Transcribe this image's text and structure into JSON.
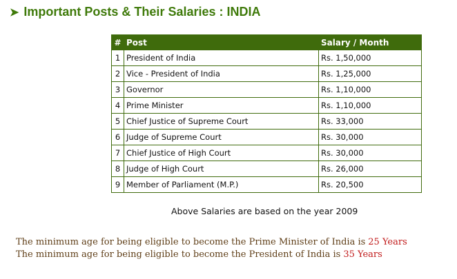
{
  "heading": {
    "arrow": "➤",
    "text": "Important Posts & Their Salaries : INDIA"
  },
  "table": {
    "headers": {
      "num": "#",
      "post": "Post",
      "salary": "Salary / Month"
    },
    "rows": [
      {
        "num": "1",
        "post": "President of India",
        "salary": "Rs. 1,50,000"
      },
      {
        "num": "2",
        "post": "Vice - President of India",
        "salary": "Rs. 1,25,000"
      },
      {
        "num": "3",
        "post": "Governor",
        "salary": "Rs. 1,10,000"
      },
      {
        "num": "4",
        "post": "Prime Minister",
        "salary": "Rs. 1,10,000"
      },
      {
        "num": "5",
        "post": "Chief Justice of Supreme Court",
        "salary": "Rs. 33,000"
      },
      {
        "num": "6",
        "post": "Judge of Supreme Court",
        "salary": "Rs. 30,000"
      },
      {
        "num": "7",
        "post": "Chief Justice of High Court",
        "salary": "Rs. 30,000"
      },
      {
        "num": "8",
        "post": "Judge of High Court",
        "salary": "Rs. 26,000"
      },
      {
        "num": "9",
        "post": "Member of Parliament (M.P.)",
        "salary": "Rs. 20,500"
      }
    ]
  },
  "note": "Above Salaries are based on the year 2009",
  "age_notes": [
    {
      "text": "The minimum age for being eligible to become the Prime Minister of India is",
      "value": "25 Years"
    },
    {
      "text": "The minimum age for being eligible to become the President of India is",
      "value": "35 Years"
    }
  ],
  "colors": {
    "heading": "#3f7a0a",
    "table_header_bg": "#3f6b0c",
    "table_border": "#3f6b0c",
    "age_text": "#5e3d16",
    "age_value": "#c01818"
  }
}
